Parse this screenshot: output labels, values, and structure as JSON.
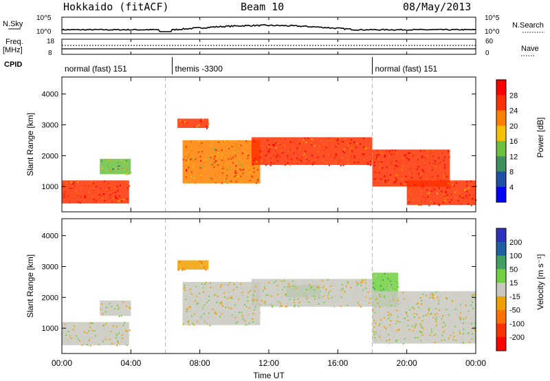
{
  "header": {
    "station": "Hokkaido (fitACF)",
    "beam": "Beam 10",
    "date": "08/May/2013"
  },
  "summary": {
    "nsky_label": "N.Sky",
    "nsearch_label": "N.Search",
    "freq_label_1": "Freq.",
    "freq_label_2": "[MHz]",
    "nave_label": "Nave",
    "cpid_label": "CPID",
    "noise_left_ticks": [
      "10^5",
      "10^0"
    ],
    "noise_right_ticks": [
      "10^5",
      "10^0"
    ],
    "freq_left_ticks": [
      "18",
      "8"
    ],
    "freq_right_ticks": [
      "60",
      "0"
    ],
    "cpid_segments": [
      {
        "label": "normal (fast) 151",
        "start": 0,
        "end": 6.4
      },
      {
        "label": "themis -3300",
        "start": 6.4,
        "end": 18.0
      },
      {
        "label": "normal (fast) 151",
        "start": 18.0,
        "end": 24
      }
    ]
  },
  "colors": {
    "power_scale": [
      "#0000ff",
      "#1f4fa8",
      "#3f8f5f",
      "#6cc040",
      "#f5c000",
      "#ff8000",
      "#ff3000",
      "#ff0000"
    ],
    "velocity_scale": [
      "#3030c0",
      "#2060a0",
      "#40a060",
      "#70d040",
      "#c8c8c0",
      "#f0a000",
      "#ff7000",
      "#ff3000",
      "#ff0000"
    ]
  },
  "chart_data": [
    {
      "type": "heatmap",
      "name": "power",
      "ylabel": "Slant Range [km]",
      "yticks": [
        1000,
        2000,
        3000,
        4000
      ],
      "ylim": [
        180,
        4550
      ],
      "xlim": [
        0,
        24
      ],
      "colorbar": {
        "label": "Power [dB]",
        "ticks": [
          "28",
          "24",
          "20",
          "16",
          "12",
          "8",
          "4"
        ],
        "range": [
          0,
          32
        ]
      },
      "echo_bands": [
        {
          "x": [
            0,
            3.9
          ],
          "y": [
            450,
            1200
          ],
          "level": 26
        },
        {
          "x": [
            2.2,
            4.0
          ],
          "y": [
            1400,
            1900
          ],
          "level": 14
        },
        {
          "x": [
            6.7,
            8.5
          ],
          "y": [
            2900,
            3200
          ],
          "level": 24
        },
        {
          "x": [
            7.0,
            11.5
          ],
          "y": [
            1100,
            2500
          ],
          "level": 22
        },
        {
          "x": [
            11.0,
            18.0
          ],
          "y": [
            1700,
            2600
          ],
          "level": 26
        },
        {
          "x": [
            18.0,
            22.5
          ],
          "y": [
            1000,
            2200
          ],
          "level": 27
        },
        {
          "x": [
            20.0,
            24.0
          ],
          "y": [
            400,
            1200
          ],
          "level": 26
        }
      ]
    },
    {
      "type": "heatmap",
      "name": "velocity",
      "ylabel": "Slant Range [km]",
      "xlabel": "Time UT",
      "yticks": [
        1000,
        2000,
        3000,
        4000
      ],
      "ylim": [
        180,
        4550
      ],
      "xlim": [
        0,
        24
      ],
      "xticks": [
        "00:00",
        "04:00",
        "08:00",
        "12:00",
        "16:00",
        "20:00",
        "00:00"
      ],
      "colorbar": {
        "label": "Velocity [m s⁻¹]",
        "ticks": [
          "200",
          "100",
          "50",
          "15",
          "-15",
          "-50",
          "-100",
          "-200"
        ],
        "range": [
          -250,
          250
        ]
      },
      "echo_bands": [
        {
          "x": [
            0,
            3.9
          ],
          "y": [
            450,
            1200
          ],
          "level": 0
        },
        {
          "x": [
            2.2,
            4.0
          ],
          "y": [
            1400,
            1900
          ],
          "level": 0
        },
        {
          "x": [
            6.7,
            8.5
          ],
          "y": [
            2900,
            3200
          ],
          "level": -40
        },
        {
          "x": [
            7.0,
            11.5
          ],
          "y": [
            1100,
            2500
          ],
          "level": 0
        },
        {
          "x": [
            13.0,
            15.0
          ],
          "y": [
            2000,
            2400
          ],
          "level": 40
        },
        {
          "x": [
            18.0,
            19.5
          ],
          "y": [
            1700,
            2800
          ],
          "level": 40
        },
        {
          "x": [
            11.0,
            18.0
          ],
          "y": [
            1700,
            2600
          ],
          "level": 0
        },
        {
          "x": [
            18.0,
            24.0
          ],
          "y": [
            500,
            2200
          ],
          "level": 0
        }
      ]
    }
  ]
}
